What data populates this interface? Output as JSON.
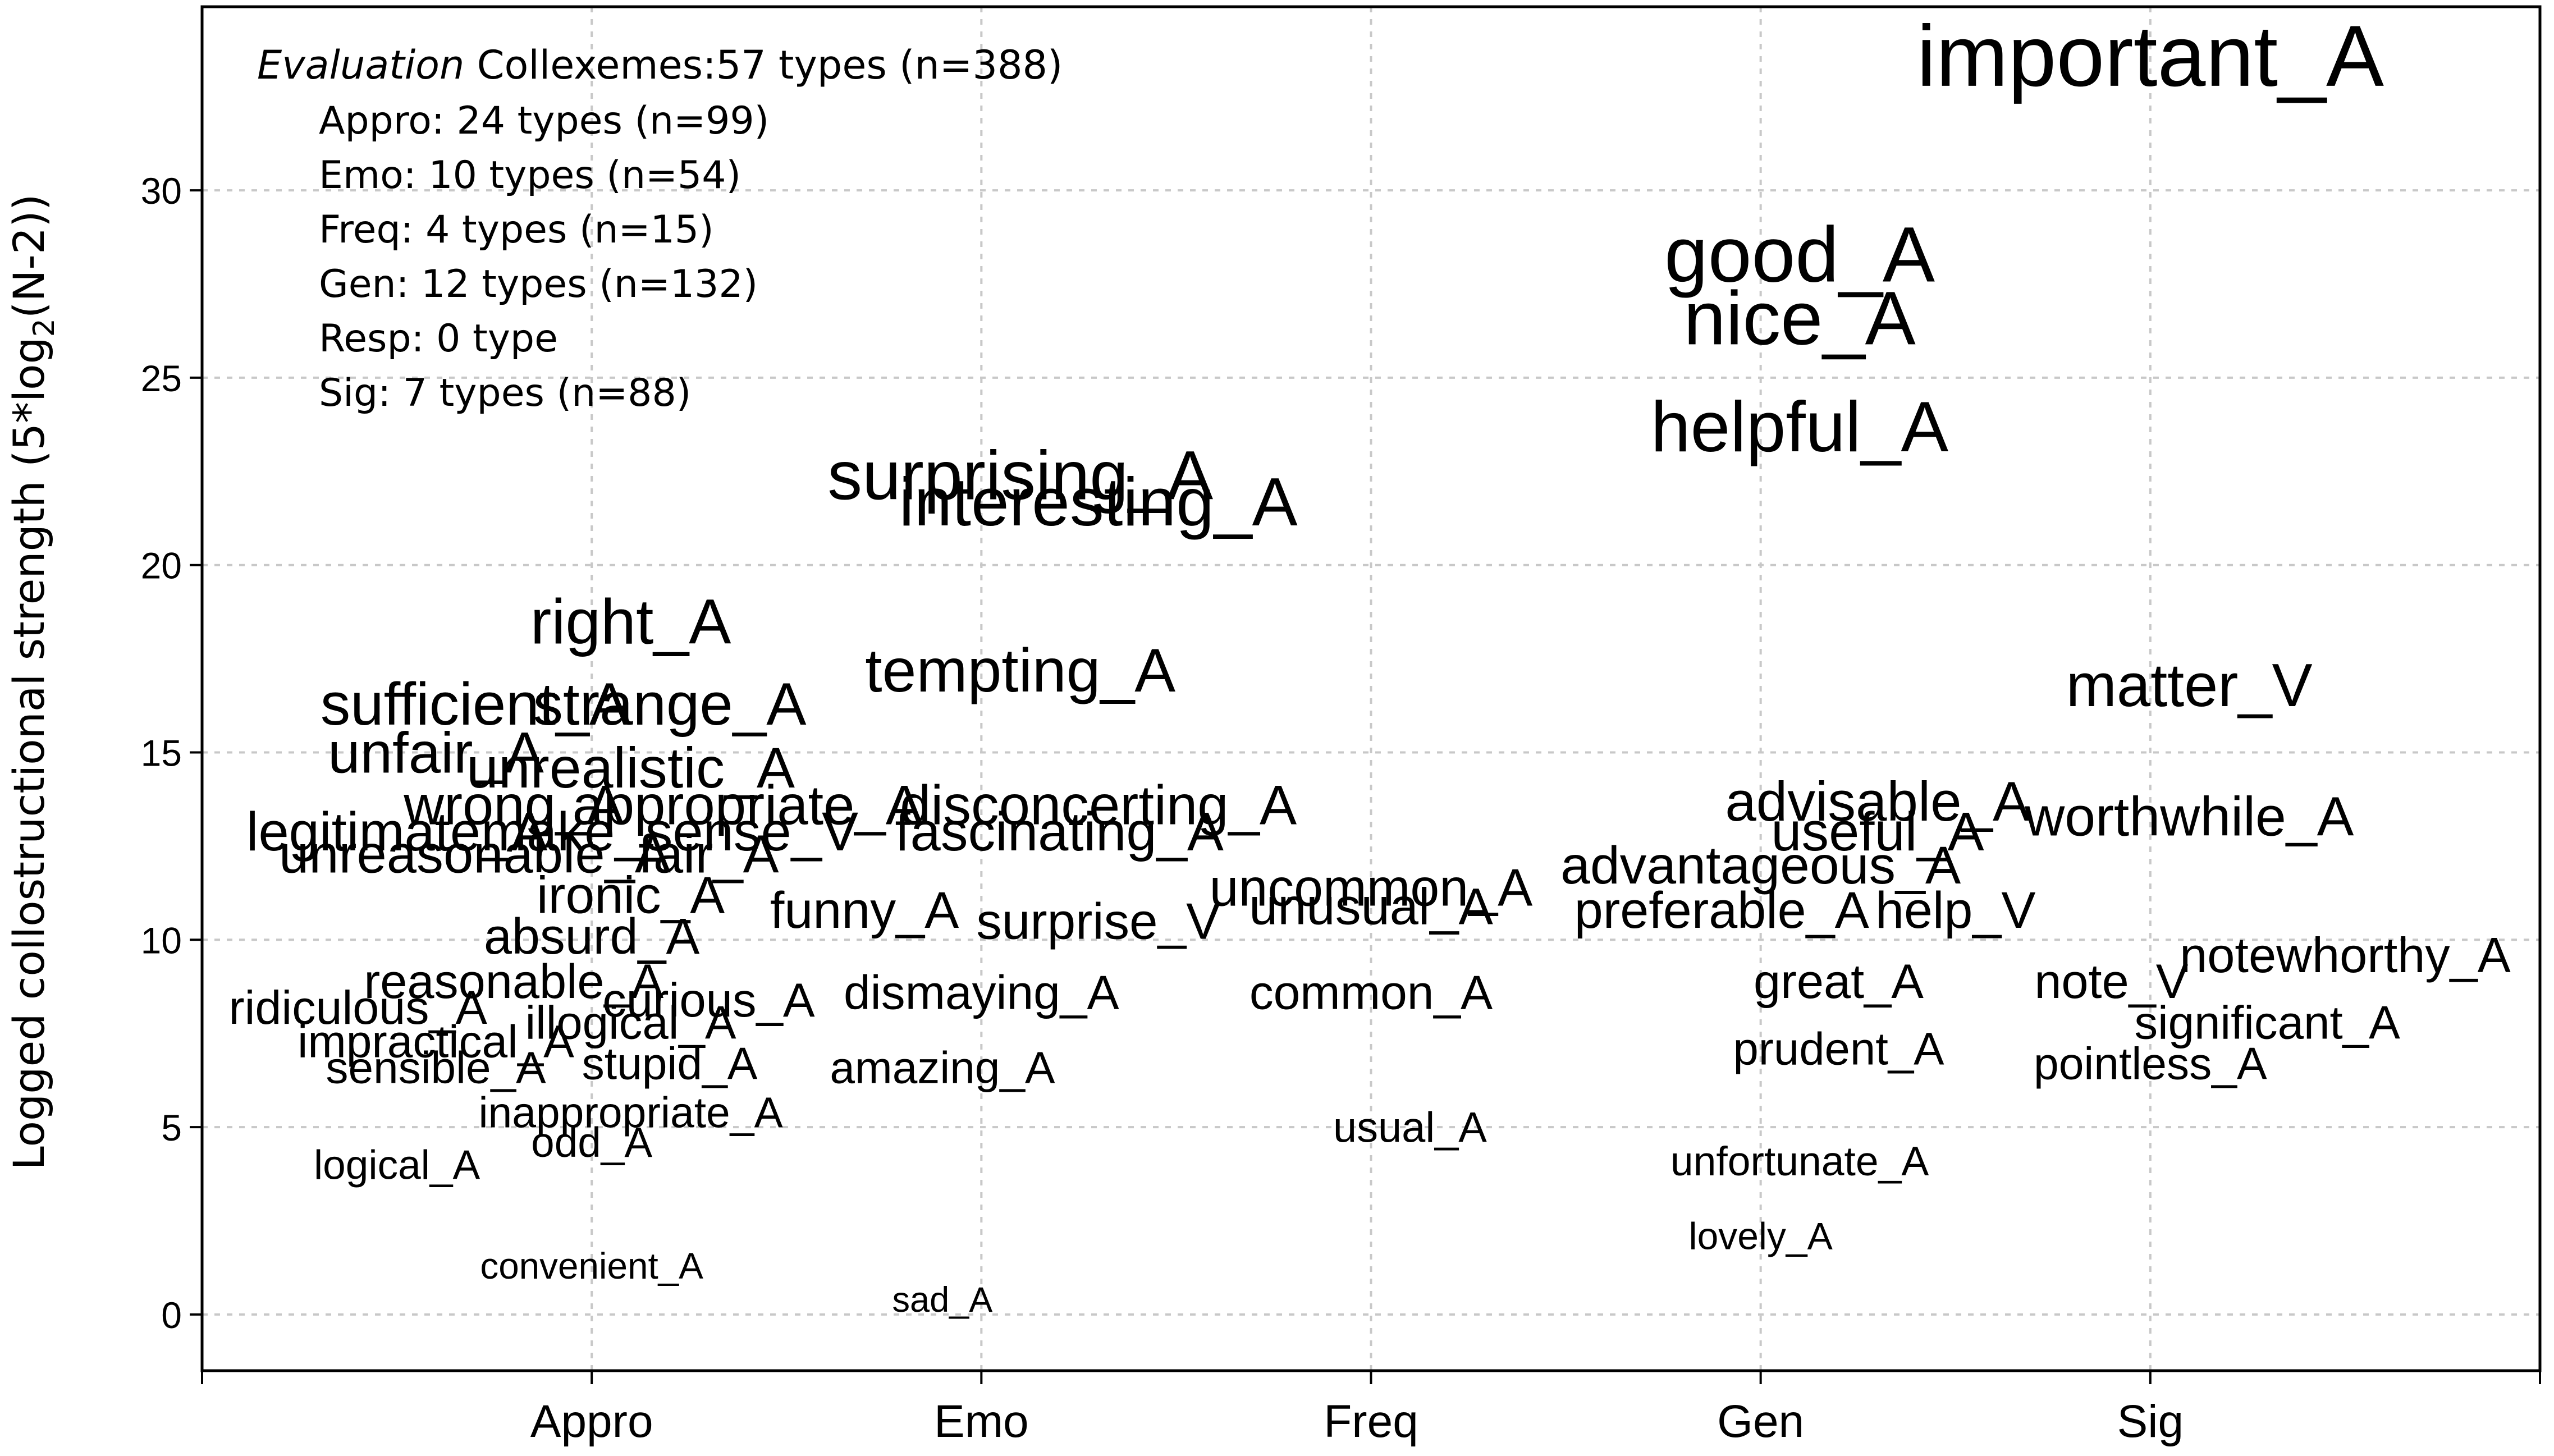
{
  "chart_data": {
    "type": "scatter",
    "ylabel_main": "Logged collostructional strength (5*log",
    "ylabel_sub": "2",
    "ylabel_end": "(N-2))",
    "xlabel": "",
    "categories": [
      "Appro",
      "Emo",
      "Freq",
      "Gen",
      "Sig"
    ],
    "xlim": [
      0,
      6
    ],
    "ylim": [
      -1.5,
      34.9
    ],
    "yticks": [
      0,
      5,
      10,
      15,
      20,
      25,
      30
    ],
    "grid": true,
    "legend": {
      "title_italic": "Evaluation",
      "title_rest": " Collexemes:57 types (n=388)",
      "lines": [
        "Appro: 24 types (n=99)",
        "Emo: 10 types (n=54)",
        "Freq: 4 types (n=15)",
        "Gen: 12 types (n=132)",
        "Resp: 0 type",
        "Sig:  7 types (n=88)"
      ]
    },
    "points": [
      {
        "label": "important_A",
        "cat": "Sig",
        "x": 5.0,
        "y": 33.6
      },
      {
        "label": "good_A",
        "cat": "Gen",
        "x": 4.1,
        "y": 28.3
      },
      {
        "label": "nice_A",
        "cat": "Gen",
        "x": 4.1,
        "y": 26.6
      },
      {
        "label": "helpful_A",
        "cat": "Gen",
        "x": 4.1,
        "y": 23.7
      },
      {
        "label": "surprising_A",
        "cat": "Emo",
        "x": 2.1,
        "y": 22.4
      },
      {
        "label": "interesting_A",
        "cat": "Emo",
        "x": 2.3,
        "y": 21.7
      },
      {
        "label": "right_A",
        "cat": "Appro",
        "x": 1.1,
        "y": 18.5
      },
      {
        "label": "tempting_A",
        "cat": "Emo",
        "x": 2.1,
        "y": 17.2
      },
      {
        "label": "matter_V",
        "cat": "Sig",
        "x": 5.1,
        "y": 16.8
      },
      {
        "label": "sufficient_A",
        "cat": "Appro",
        "x": 0.7,
        "y": 16.3
      },
      {
        "label": "strange_A",
        "cat": "Appro",
        "x": 1.2,
        "y": 16.3
      },
      {
        "label": "unfair_A",
        "cat": "Appro",
        "x": 0.6,
        "y": 15.0
      },
      {
        "label": "unrealistic_A",
        "cat": "Appro",
        "x": 1.1,
        "y": 14.6
      },
      {
        "label": "wrong_A",
        "cat": "Appro",
        "x": 0.8,
        "y": 13.6
      },
      {
        "label": "appropriate_A",
        "cat": "Appro",
        "x": 1.4,
        "y": 13.6
      },
      {
        "label": "disconcerting_A",
        "cat": "Emo",
        "x": 2.3,
        "y": 13.6
      },
      {
        "label": "advisable_A",
        "cat": "Gen",
        "x": 4.3,
        "y": 13.7
      },
      {
        "label": "worthwhile_A",
        "cat": "Sig",
        "x": 5.1,
        "y": 13.3
      },
      {
        "label": "legitimate_A",
        "cat": "Appro",
        "x": 0.5,
        "y": 12.9
      },
      {
        "label": "make_sense_V",
        "cat": "Appro",
        "x": 1.2,
        "y": 12.9
      },
      {
        "label": "fascinating_A",
        "cat": "Emo",
        "x": 2.2,
        "y": 12.9
      },
      {
        "label": "useful_A",
        "cat": "Gen",
        "x": 4.3,
        "y": 12.9
      },
      {
        "label": "unreasonable_A",
        "cat": "Appro",
        "x": 0.7,
        "y": 12.3
      },
      {
        "label": "fair_A",
        "cat": "Appro",
        "x": 1.3,
        "y": 12.3
      },
      {
        "label": "advantageous_A",
        "cat": "Gen",
        "x": 4.0,
        "y": 12.0
      },
      {
        "label": "uncommon_A",
        "cat": "Freq",
        "x": 3.0,
        "y": 11.4
      },
      {
        "label": "ironic_A",
        "cat": "Appro",
        "x": 1.1,
        "y": 11.2
      },
      {
        "label": "unusual_A",
        "cat": "Freq",
        "x": 3.0,
        "y": 10.9
      },
      {
        "label": "preferable_A",
        "cat": "Gen",
        "x": 3.9,
        "y": 10.8
      },
      {
        "label": "help_V",
        "cat": "Gen",
        "x": 4.5,
        "y": 10.8
      },
      {
        "label": "funny_A",
        "cat": "Emo",
        "x": 1.7,
        "y": 10.8
      },
      {
        "label": "surprise_V",
        "cat": "Emo",
        "x": 2.3,
        "y": 10.5
      },
      {
        "label": "absurd_A",
        "cat": "Appro",
        "x": 1.0,
        "y": 10.1
      },
      {
        "label": "notewhorthy_A",
        "cat": "Sig",
        "x": 5.5,
        "y": 9.6
      },
      {
        "label": "reasonable_A",
        "cat": "Appro",
        "x": 0.8,
        "y": 8.9
      },
      {
        "label": "great_A",
        "cat": "Gen",
        "x": 4.2,
        "y": 8.9
      },
      {
        "label": "note_V",
        "cat": "Sig",
        "x": 4.9,
        "y": 8.9
      },
      {
        "label": "common_A",
        "cat": "Freq",
        "x": 3.0,
        "y": 8.6
      },
      {
        "label": "dismaying_A",
        "cat": "Emo",
        "x": 2.0,
        "y": 8.6
      },
      {
        "label": "curious_A",
        "cat": "Appro",
        "x": 1.3,
        "y": 8.4
      },
      {
        "label": "ridiculous_A",
        "cat": "Appro",
        "x": 0.4,
        "y": 8.2
      },
      {
        "label": "illogical_A",
        "cat": "Appro",
        "x": 1.1,
        "y": 7.8
      },
      {
        "label": "significant_A",
        "cat": "Sig",
        "x": 5.3,
        "y": 7.8
      },
      {
        "label": "impractical_A",
        "cat": "Appro",
        "x": 0.6,
        "y": 7.3
      },
      {
        "label": "prudent_A",
        "cat": "Gen",
        "x": 4.2,
        "y": 7.1
      },
      {
        "label": "stupid_A",
        "cat": "Appro",
        "x": 1.2,
        "y": 6.7
      },
      {
        "label": "sensible_A",
        "cat": "Appro",
        "x": 0.6,
        "y": 6.6
      },
      {
        "label": "pointless_A",
        "cat": "Sig",
        "x": 5.0,
        "y": 6.7
      },
      {
        "label": "amazing_A",
        "cat": "Emo",
        "x": 1.9,
        "y": 6.6
      },
      {
        "label": "inappropriate_A",
        "cat": "Appro",
        "x": 1.1,
        "y": 5.4
      },
      {
        "label": "odd_A",
        "cat": "Appro",
        "x": 1.0,
        "y": 4.6
      },
      {
        "label": "usual_A",
        "cat": "Freq",
        "x": 3.1,
        "y": 5.0
      },
      {
        "label": "logical_A",
        "cat": "Appro",
        "x": 0.5,
        "y": 4.0
      },
      {
        "label": "unfortunate_A",
        "cat": "Gen",
        "x": 4.1,
        "y": 4.1
      },
      {
        "label": "lovely_A",
        "cat": "Gen",
        "x": 4.0,
        "y": 2.1
      },
      {
        "label": "convenient_A",
        "cat": "Appro",
        "x": 1.0,
        "y": 1.3
      },
      {
        "label": "sad_A",
        "cat": "Emo",
        "x": 1.9,
        "y": 0.4
      }
    ]
  }
}
